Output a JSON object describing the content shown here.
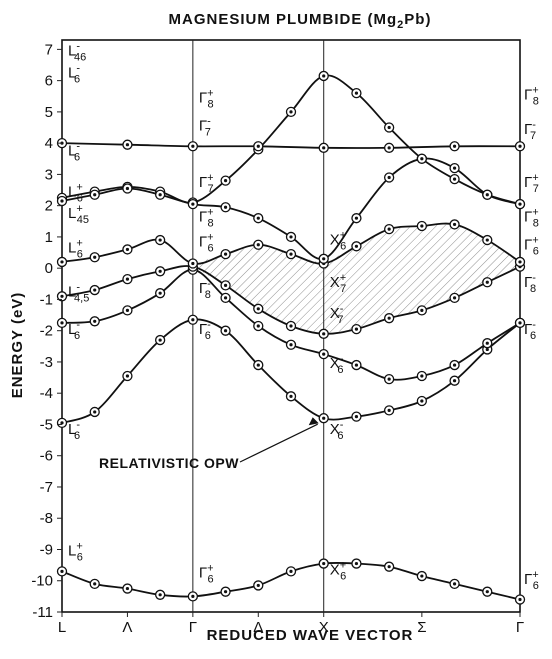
{
  "chart_data": {
    "type": "line",
    "title": "MAGNESIUM PLUMBIDE (Mg",
    "title_sub": "2",
    "title_tail": "Pb)",
    "xlabel": "REDUCED WAVE VECTOR",
    "ylabel": "ENERGY (eV)",
    "ylim": [
      -11,
      7.3
    ],
    "y_ticks": [
      7,
      6,
      5,
      4,
      3,
      2,
      1,
      0,
      -1,
      -2,
      -3,
      -4,
      -5,
      -6,
      -7,
      -8,
      -9,
      -10,
      -11
    ],
    "x_points": [
      {
        "label": "L",
        "pos": 0
      },
      {
        "label": "Λ",
        "pos": 0.5
      },
      {
        "label": "Γ",
        "pos": 1
      },
      {
        "label": "Δ",
        "pos": 1.5
      },
      {
        "label": "X",
        "pos": 2
      },
      {
        "label": "Σ",
        "pos": 2.75
      },
      {
        "label": "Γ",
        "pos": 3.5
      }
    ],
    "annotation": "RELATIVISTIC OPW",
    "series": [
      {
        "points": [
          [
            0,
            -9.7
          ],
          [
            0.25,
            -10.1
          ],
          [
            0.5,
            -10.25
          ],
          [
            0.75,
            -10.45
          ],
          [
            1,
            -10.5
          ],
          [
            1.25,
            -10.35
          ],
          [
            1.5,
            -10.15
          ],
          [
            1.75,
            -9.7
          ],
          [
            2,
            -9.45
          ],
          [
            2.25,
            -9.45
          ],
          [
            2.5,
            -9.55
          ],
          [
            2.75,
            -9.85
          ],
          [
            3,
            -10.1
          ],
          [
            3.25,
            -10.35
          ],
          [
            3.5,
            -10.6
          ]
        ]
      },
      {
        "points": [
          [
            0,
            -4.95
          ],
          [
            0.25,
            -4.6
          ],
          [
            0.5,
            -3.45
          ],
          [
            0.75,
            -2.3
          ],
          [
            1,
            -1.65
          ],
          [
            1.25,
            -2.0
          ],
          [
            1.5,
            -3.1
          ],
          [
            1.75,
            -4.1
          ],
          [
            2,
            -4.8
          ],
          [
            2.25,
            -4.75
          ],
          [
            2.5,
            -4.55
          ],
          [
            2.75,
            -4.25
          ],
          [
            3,
            -3.6
          ],
          [
            3.25,
            -2.6
          ],
          [
            3.5,
            -1.75
          ]
        ]
      },
      {
        "points": [
          [
            0,
            -1.75
          ],
          [
            0.25,
            -1.7
          ],
          [
            0.5,
            -1.35
          ],
          [
            0.75,
            -0.8
          ],
          [
            1,
            -0.05
          ],
          [
            1.25,
            -0.95
          ],
          [
            1.5,
            -1.85
          ],
          [
            1.75,
            -2.45
          ],
          [
            2,
            -2.75
          ],
          [
            2.25,
            -3.1
          ],
          [
            2.5,
            -3.55
          ],
          [
            2.75,
            -3.45
          ],
          [
            3,
            -3.1
          ],
          [
            3.25,
            -2.4
          ],
          [
            3.5,
            -1.75
          ]
        ]
      },
      {
        "points": [
          [
            0,
            -0.9
          ],
          [
            0.25,
            -0.7
          ],
          [
            0.5,
            -0.35
          ],
          [
            0.75,
            -0.1
          ],
          [
            1,
            0.05
          ],
          [
            1.25,
            -0.55
          ],
          [
            1.5,
            -1.3
          ],
          [
            1.75,
            -1.85
          ],
          [
            2,
            -2.1
          ],
          [
            2.25,
            -1.95
          ],
          [
            2.5,
            -1.6
          ],
          [
            2.75,
            -1.35
          ],
          [
            3,
            -0.95
          ],
          [
            3.25,
            -0.45
          ],
          [
            3.5,
            0.05
          ]
        ]
      },
      {
        "points": [
          [
            0,
            0.2
          ],
          [
            0.25,
            0.35
          ],
          [
            0.5,
            0.6
          ],
          [
            0.75,
            0.9
          ],
          [
            1,
            0.15
          ],
          [
            1.25,
            0.45
          ],
          [
            1.5,
            0.75
          ],
          [
            1.75,
            0.45
          ],
          [
            2,
            0.15
          ],
          [
            2.25,
            0.7
          ],
          [
            2.5,
            1.25
          ],
          [
            2.75,
            1.35
          ],
          [
            3,
            1.4
          ],
          [
            3.25,
            0.9
          ],
          [
            3.5,
            0.2
          ]
        ]
      },
      {
        "points": [
          [
            0,
            2.25
          ],
          [
            0.25,
            2.45
          ],
          [
            0.5,
            2.6
          ],
          [
            0.75,
            2.45
          ],
          [
            1,
            2.1
          ],
          [
            1.25,
            2.8
          ],
          [
            1.5,
            3.8
          ],
          [
            1.75,
            5.0
          ],
          [
            2,
            6.15
          ],
          [
            2.25,
            5.6
          ],
          [
            2.5,
            4.5
          ],
          [
            2.75,
            3.5
          ],
          [
            3,
            2.85
          ],
          [
            3.25,
            2.35
          ],
          [
            3.5,
            2.05
          ]
        ]
      },
      {
        "points": [
          [
            0,
            2.15
          ],
          [
            0.25,
            2.35
          ],
          [
            0.5,
            2.55
          ],
          [
            0.75,
            2.35
          ],
          [
            1,
            2.05
          ],
          [
            1.25,
            1.95
          ],
          [
            1.5,
            1.6
          ],
          [
            1.75,
            1.0
          ],
          [
            2,
            0.3
          ],
          [
            2.25,
            1.6
          ],
          [
            2.5,
            2.9
          ],
          [
            2.75,
            3.5
          ],
          [
            3,
            3.2
          ],
          [
            3.25,
            2.35
          ],
          [
            3.5,
            2.05
          ]
        ]
      },
      {
        "points": [
          [
            0,
            4.0
          ],
          [
            0.5,
            3.95
          ],
          [
            1,
            3.9
          ],
          [
            1.5,
            3.9
          ],
          [
            2,
            3.85
          ],
          [
            2.5,
            3.85
          ],
          [
            3,
            3.9
          ],
          [
            3.5,
            3.9
          ]
        ]
      }
    ],
    "point_labels": [
      {
        "base": "L",
        "sup": "-",
        "sub": "46",
        "x": 0,
        "y": 6.8
      },
      {
        "base": "L",
        "sup": "-",
        "sub": "6",
        "x": 0,
        "y": 6.1
      },
      {
        "base": "L",
        "sup": "-",
        "sub": "6",
        "x": 0,
        "y": 3.6
      },
      {
        "base": "L",
        "sup": "+",
        "sub": "6",
        "x": 0,
        "y": 2.3
      },
      {
        "base": "L",
        "sup": "+",
        "sub": "45",
        "x": 0,
        "y": 1.6
      },
      {
        "base": "L",
        "sup": "+",
        "sub": "6",
        "x": 0,
        "y": 0.5
      },
      {
        "base": "L",
        "sup": "-",
        "sub": "4,5",
        "x": 0,
        "y": -0.9
      },
      {
        "base": "L",
        "sup": "-",
        "sub": "6",
        "x": 0,
        "y": -2.1
      },
      {
        "base": "L",
        "sup": "-",
        "sub": "6",
        "x": 0,
        "y": -5.3
      },
      {
        "base": "L",
        "sup": "+",
        "sub": "6",
        "x": 0,
        "y": -9.2
      },
      {
        "base": "Γ",
        "sup": "+",
        "sub": "8",
        "x": 1,
        "y": 5.3
      },
      {
        "base": "Γ",
        "sup": "-",
        "sub": "7",
        "x": 1,
        "y": 4.4
      },
      {
        "base": "Γ",
        "sup": "+",
        "sub": "7",
        "x": 1,
        "y": 2.6
      },
      {
        "base": "Γ",
        "sup": "+",
        "sub": "8",
        "x": 1,
        "y": 1.5
      },
      {
        "base": "Γ",
        "sup": "+",
        "sub": "6",
        "x": 1,
        "y": 0.7
      },
      {
        "base": "Γ",
        "sup": "-",
        "sub": "8",
        "x": 1,
        "y": -0.8
      },
      {
        "base": "Γ",
        "sup": "-",
        "sub": "6",
        "x": 1,
        "y": -2.1
      },
      {
        "base": "Γ",
        "sup": "+",
        "sub": "6",
        "x": 1,
        "y": -9.9
      },
      {
        "base": "X",
        "sup": "+",
        "sub": "6",
        "x": 2,
        "y": 0.75
      },
      {
        "base": "X",
        "sup": "+",
        "sub": "7",
        "x": 2,
        "y": -0.6
      },
      {
        "base": "X",
        "sup": "-",
        "sub": "7",
        "x": 2,
        "y": -1.6
      },
      {
        "base": "X",
        "sup": "-",
        "sub": "6",
        "x": 2,
        "y": -3.2
      },
      {
        "base": "X",
        "sup": "-",
        "sub": "6",
        "x": 2,
        "y": -5.3
      },
      {
        "base": "X",
        "sup": "+",
        "sub": "6",
        "x": 2,
        "y": -9.8
      },
      {
        "base": "Γ",
        "sup": "+",
        "sub": "8",
        "x": 3.5,
        "y": 5.4
      },
      {
        "base": "Γ",
        "sup": "-",
        "sub": "7",
        "x": 3.5,
        "y": 4.3
      },
      {
        "base": "Γ",
        "sup": "+",
        "sub": "7",
        "x": 3.5,
        "y": 2.6
      },
      {
        "base": "Γ",
        "sup": "+",
        "sub": "8",
        "x": 3.5,
        "y": 1.5
      },
      {
        "base": "Γ",
        "sup": "+",
        "sub": "6",
        "x": 3.5,
        "y": 0.6
      },
      {
        "base": "Γ",
        "sup": "-",
        "sub": "8",
        "x": 3.5,
        "y": -0.6
      },
      {
        "base": "Γ",
        "sup": "-",
        "sub": "6",
        "x": 3.5,
        "y": -2.1
      },
      {
        "base": "Γ",
        "sup": "+",
        "sub": "6",
        "x": 3.5,
        "y": -10.1
      }
    ]
  }
}
